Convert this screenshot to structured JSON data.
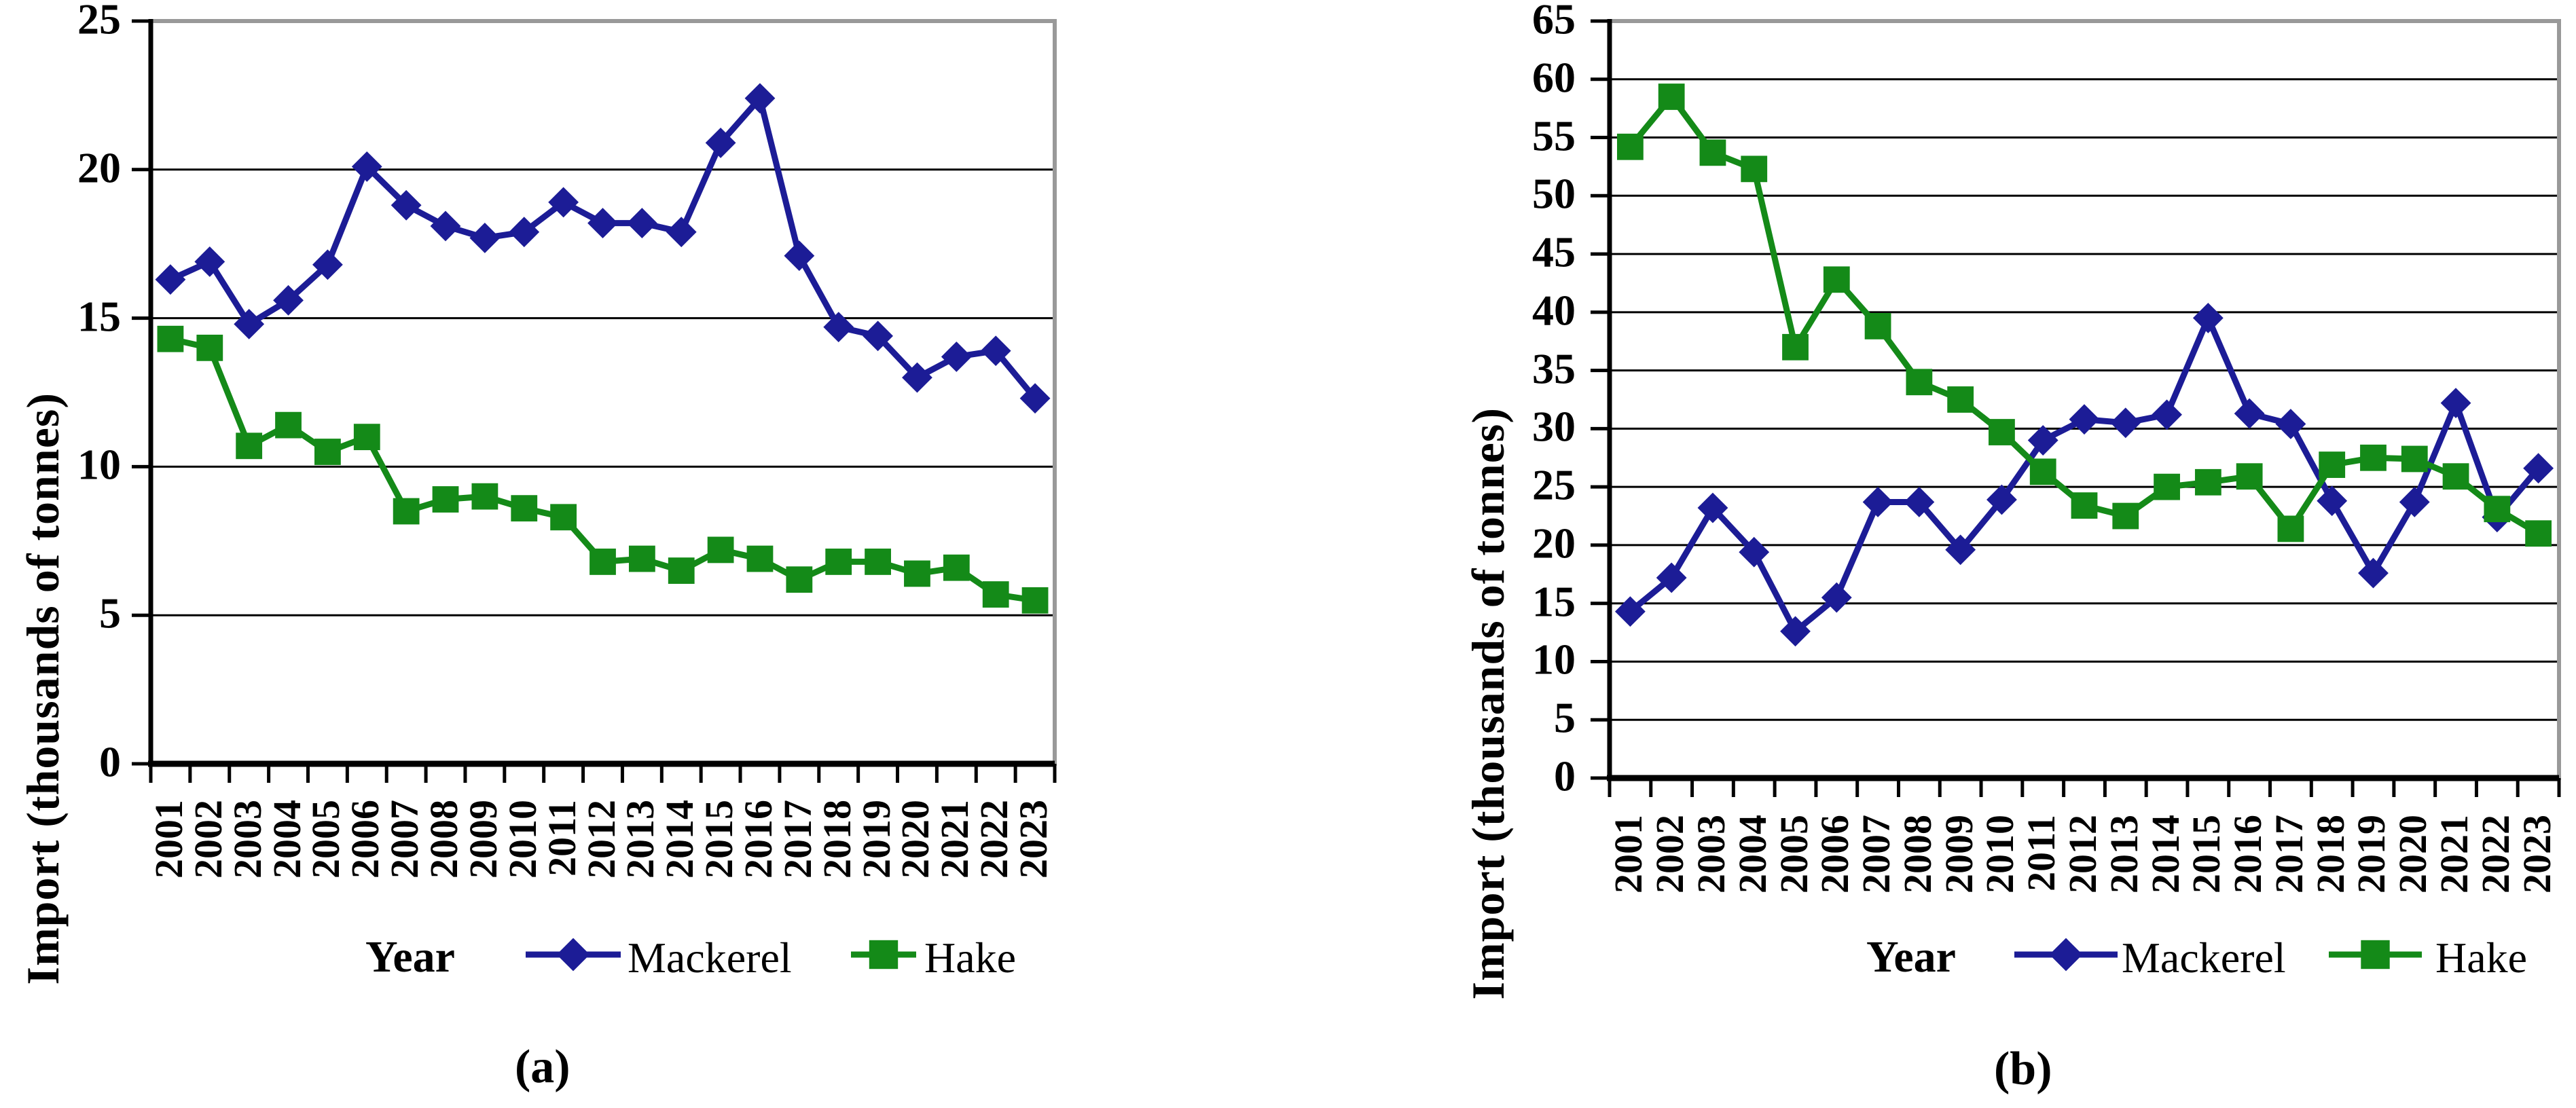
{
  "figure": {
    "captions": {
      "a": "(a)",
      "b": "(b)"
    },
    "colors": {
      "mackerel": "#1c1c96",
      "hake": "#148a18",
      "gridline": "#000000",
      "plot_border": "#999999",
      "axis": "#000000",
      "background": "#ffffff"
    }
  },
  "chart_data": [
    {
      "type": "line",
      "panel": "a",
      "title": "",
      "xlabel": "Year",
      "ylabel": "Import (thousands of tonnes)",
      "x": [
        "2001",
        "2002",
        "2003",
        "2004",
        "2005",
        "2006",
        "2007",
        "2008",
        "2009",
        "2010",
        "2011",
        "2012",
        "2013",
        "2014",
        "2015",
        "2016",
        "2017",
        "2018",
        "2019",
        "2020",
        "2021",
        "2022",
        "2023"
      ],
      "ylim": [
        0,
        25
      ],
      "yticks": [
        0,
        5,
        10,
        15,
        20,
        25
      ],
      "grid": true,
      "legend_position": "bottom",
      "series": [
        {
          "name": "Mackerel",
          "marker": "diamond",
          "color": "#1c1c96",
          "values": [
            16.3,
            16.9,
            14.8,
            15.6,
            16.8,
            20.1,
            18.8,
            18.1,
            17.7,
            17.9,
            18.9,
            18.2,
            18.2,
            17.9,
            20.9,
            22.4,
            17.1,
            14.7,
            14.4,
            13.0,
            13.7,
            13.9,
            12.3
          ]
        },
        {
          "name": "Hake",
          "marker": "square",
          "color": "#148a18",
          "values": [
            14.3,
            14.0,
            10.7,
            11.4,
            10.5,
            11.0,
            8.5,
            8.9,
            9.0,
            8.6,
            8.3,
            6.8,
            6.9,
            6.5,
            7.2,
            6.9,
            6.2,
            6.8,
            6.8,
            6.4,
            6.6,
            5.7,
            5.5
          ]
        }
      ]
    },
    {
      "type": "line",
      "panel": "b",
      "title": "",
      "xlabel": "Year",
      "ylabel": "Import (thousands of tonnes)",
      "x": [
        "2001",
        "2002",
        "2003",
        "2004",
        "2005",
        "2006",
        "2007",
        "2008",
        "2009",
        "2010",
        "2011",
        "2012",
        "2013",
        "2014",
        "2015",
        "2016",
        "2017",
        "2018",
        "2019",
        "2020",
        "2021",
        "2022",
        "2023"
      ],
      "ylim": [
        0,
        65
      ],
      "yticks": [
        0,
        5,
        10,
        15,
        20,
        25,
        30,
        35,
        40,
        45,
        50,
        55,
        60,
        65
      ],
      "grid": true,
      "legend_position": "bottom",
      "series": [
        {
          "name": "Mackerel",
          "marker": "diamond",
          "color": "#1c1c96",
          "values": [
            14.3,
            17.2,
            23.2,
            19.4,
            12.6,
            15.5,
            23.7,
            23.7,
            19.6,
            23.9,
            29.0,
            30.8,
            30.5,
            31.2,
            39.5,
            31.3,
            30.4,
            23.8,
            17.6,
            23.7,
            32.2,
            22.4,
            26.6
          ]
        },
        {
          "name": "Hake",
          "marker": "square",
          "color": "#148a18",
          "values": [
            54.2,
            58.5,
            53.7,
            52.3,
            37.0,
            42.8,
            38.8,
            34.0,
            32.5,
            29.7,
            26.3,
            23.4,
            22.5,
            25.0,
            25.4,
            25.9,
            21.4,
            26.9,
            27.5,
            27.4,
            25.9,
            23.1,
            21.0
          ]
        }
      ]
    }
  ]
}
